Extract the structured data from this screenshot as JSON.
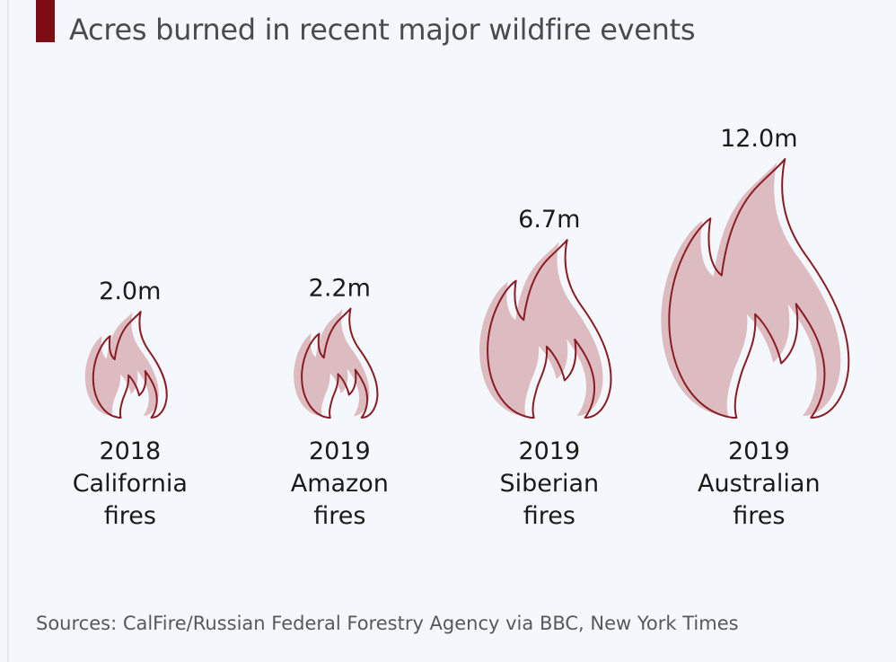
{
  "title": "Acres burned in recent major wildfire events",
  "source": "Sources: CalFire/Russian Federal Forestry Agency via BBC, New York Times",
  "colors": {
    "accent": "#7d0d12",
    "flame_fill": "#dcbcc0",
    "flame_outline": "#8a1b22",
    "text": "#1a1a1a"
  },
  "chart_data": {
    "type": "bar",
    "unit": "million acres",
    "categories": [
      [
        "2018",
        "California",
        "fires"
      ],
      [
        "2019",
        "Amazon",
        "fires"
      ],
      [
        "2019",
        "Siberian",
        "fires"
      ],
      [
        "2019",
        "Australian",
        "fires"
      ]
    ],
    "values": [
      2.0,
      2.2,
      6.7,
      12.0
    ],
    "data_labels": [
      "2.0m",
      "2.2m",
      "6.7m",
      "12.0m"
    ],
    "marker": "flame-icon"
  }
}
